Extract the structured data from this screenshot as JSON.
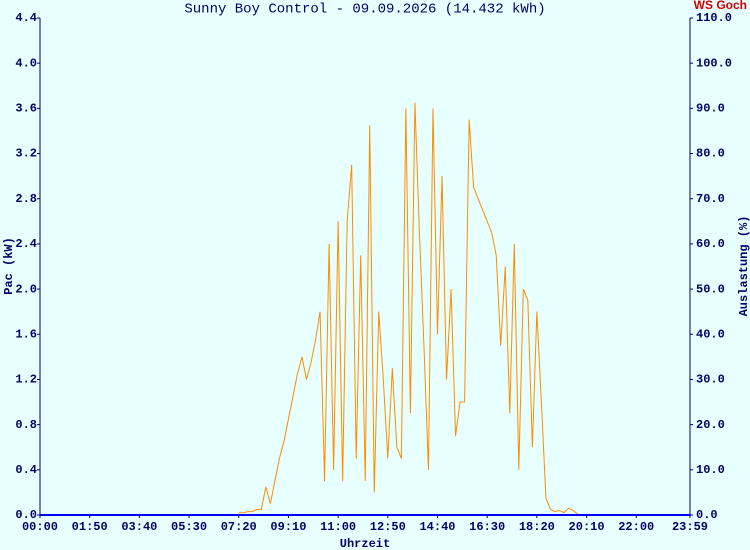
{
  "chart_data": {
    "type": "line",
    "title": "Sunny Boy Control - 09.09.2026 (14.432 kWh)",
    "corner_label": "WS Goch",
    "xlabel": "Uhrzeit",
    "ylabel": "Pac (kW)",
    "y2label": "Auslastung (%)",
    "color": "#ff8c00",
    "x": [
      440,
      450,
      460,
      470,
      480,
      490,
      500,
      510,
      520,
      530,
      540,
      550,
      560,
      570,
      580,
      590,
      600,
      610,
      620,
      630,
      640,
      650,
      660,
      670,
      680,
      690,
      700,
      710,
      720,
      730,
      740,
      750,
      760,
      770,
      780,
      790,
      800,
      810,
      820,
      830,
      840,
      850,
      860,
      870,
      880,
      890,
      900,
      910,
      920,
      930,
      940,
      950,
      960,
      970,
      980,
      990,
      1000,
      1010,
      1020,
      1030,
      1040,
      1050,
      1060,
      1070,
      1080,
      1090,
      1100,
      1110,
      1120,
      1130,
      1140,
      1150,
      1160,
      1170,
      1180,
      1190
    ],
    "values": [
      0.02,
      0.02,
      0.03,
      0.03,
      0.05,
      0.05,
      0.25,
      0.1,
      0.3,
      0.5,
      0.65,
      0.85,
      1.05,
      1.25,
      1.4,
      1.2,
      1.35,
      1.55,
      1.8,
      0.3,
      2.4,
      0.4,
      2.6,
      0.3,
      2.6,
      3.1,
      0.5,
      2.3,
      0.3,
      3.45,
      0.2,
      1.8,
      1.2,
      0.5,
      1.3,
      0.6,
      0.5,
      3.6,
      0.9,
      3.65,
      2.5,
      1.5,
      0.4,
      3.6,
      1.6,
      3.0,
      1.2,
      2.0,
      0.7,
      1.0,
      1.0,
      3.5,
      2.9,
      2.8,
      2.7,
      2.6,
      2.5,
      2.3,
      1.5,
      2.2,
      0.9,
      2.4,
      0.4,
      2.0,
      1.9,
      0.6,
      1.8,
      1.0,
      0.15,
      0.05,
      0.03,
      0.04,
      0.02,
      0.06,
      0.04,
      0.01
    ],
    "xlim": [
      0,
      1439
    ],
    "xticks": [
      {
        "value": 0,
        "label": "00:00"
      },
      {
        "value": 110,
        "label": "01:50"
      },
      {
        "value": 220,
        "label": "03:40"
      },
      {
        "value": 330,
        "label": "05:30"
      },
      {
        "value": 440,
        "label": "07:20"
      },
      {
        "value": 550,
        "label": "09:10"
      },
      {
        "value": 660,
        "label": "11:00"
      },
      {
        "value": 770,
        "label": "12:50"
      },
      {
        "value": 880,
        "label": "14:40"
      },
      {
        "value": 990,
        "label": "16:30"
      },
      {
        "value": 1100,
        "label": "18:20"
      },
      {
        "value": 1210,
        "label": "20:10"
      },
      {
        "value": 1320,
        "label": "22:00"
      },
      {
        "value": 1439,
        "label": "23:59"
      }
    ],
    "ylim": [
      0,
      4.4
    ],
    "yticks": [
      {
        "value": 0,
        "label": "0.0"
      },
      0.4,
      0.8,
      1.2,
      1.6,
      {
        "value": 2,
        "label": "2.0"
      },
      2.4,
      2.8,
      3.2,
      3.6,
      {
        "value": 4,
        "label": "4.0"
      },
      4.4
    ],
    "y2lim": [
      0,
      110
    ],
    "y2ticks": [
      {
        "value": 0,
        "label": "0.0"
      },
      {
        "value": 10,
        "label": "10.0"
      },
      {
        "value": 20,
        "label": "20.0"
      },
      {
        "value": 30,
        "label": "30.0"
      },
      {
        "value": 40,
        "label": "40.0"
      },
      {
        "value": 50,
        "label": "50.0"
      },
      {
        "value": 60,
        "label": "60.0"
      },
      {
        "value": 70,
        "label": "70.0"
      },
      {
        "value": 80,
        "label": "80.0"
      },
      {
        "value": 90,
        "label": "90.0"
      },
      {
        "value": 100,
        "label": "100.0"
      },
      {
        "value": 110,
        "label": "110.0"
      }
    ]
  }
}
